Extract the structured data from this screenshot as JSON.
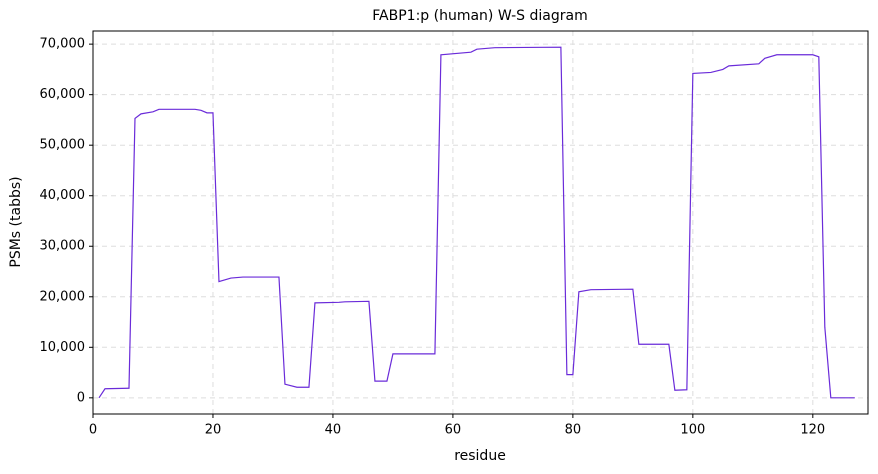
{
  "chart_data": {
    "type": "line",
    "title": "FABP1:p (human) W-S diagram",
    "x_label": "residue",
    "y_label": "PSMs (tabbs)",
    "x": [
      1,
      2,
      6,
      7,
      8,
      10,
      11,
      17,
      18,
      19,
      20,
      21,
      23,
      25,
      31,
      32,
      34,
      36,
      37,
      41,
      42,
      46,
      47,
      49,
      50,
      57,
      58,
      63,
      64,
      67,
      78,
      79,
      80,
      81,
      83,
      90,
      91,
      96,
      97,
      99,
      100,
      103,
      105,
      106,
      111,
      112,
      114,
      120,
      121,
      122,
      123,
      127
    ],
    "series": [
      {
        "name": "PSMs",
        "color": "#6a2bd9",
        "values": [
          0,
          1800,
          1900,
          55300,
          56200,
          56600,
          57100,
          57100,
          56900,
          56400,
          56400,
          23000,
          23700,
          23900,
          23900,
          2700,
          2100,
          2100,
          18800,
          18900,
          19000,
          19100,
          3300,
          3300,
          8700,
          8700,
          67900,
          68400,
          69000,
          69300,
          69400,
          4600,
          4600,
          21000,
          21400,
          21500,
          10600,
          10600,
          1500,
          1600,
          64200,
          64400,
          65000,
          65700,
          66100,
          67200,
          67900,
          67900,
          67500,
          14000,
          0,
          0
        ]
      }
    ],
    "xlim": [
      0,
      129.2
    ],
    "ylim": [
      -3200,
      72600
    ],
    "xticks": [
      0,
      20,
      40,
      60,
      80,
      100,
      120
    ],
    "yticks": [
      0,
      {
        "value": 10000,
        "label": "10,000"
      },
      {
        "value": 20000,
        "label": "20,000"
      },
      {
        "value": 30000,
        "label": "30,000"
      },
      {
        "value": 40000,
        "label": "40,000"
      },
      {
        "value": 50000,
        "label": "50,000"
      },
      {
        "value": 60000,
        "label": "60,000"
      },
      {
        "value": 70000,
        "label": "70,000"
      }
    ],
    "grid": true
  }
}
